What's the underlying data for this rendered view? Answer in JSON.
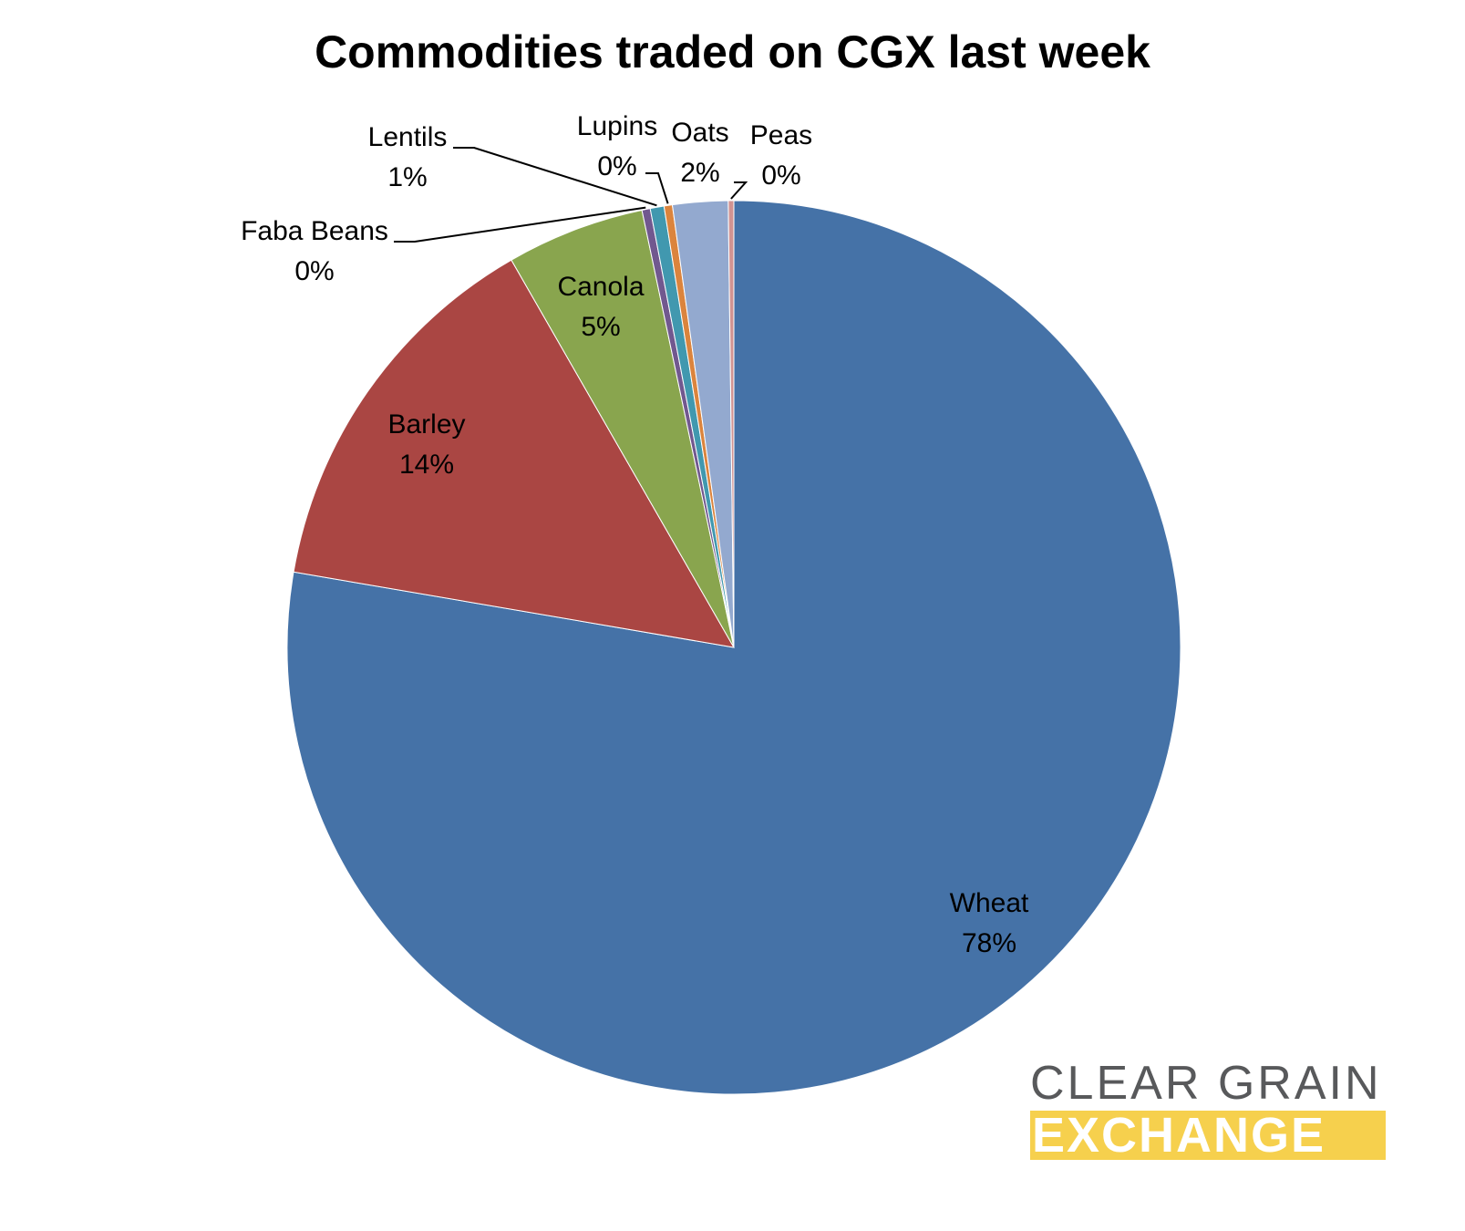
{
  "chart_data": {
    "type": "pie",
    "title": "Commodities traded on CGX last week",
    "slices": [
      {
        "label": "Wheat",
        "value": 77.7,
        "pct_label": "78%",
        "color": "#4572a7"
      },
      {
        "label": "Barley",
        "value": 14.0,
        "pct_label": "14%",
        "color": "#aa4643"
      },
      {
        "label": "Canola",
        "value": 5.0,
        "pct_label": "5%",
        "color": "#89a54e"
      },
      {
        "label": "Faba Beans",
        "value": 0.3,
        "pct_label": "0%",
        "color": "#71588f"
      },
      {
        "label": "Lentils",
        "value": 0.5,
        "pct_label": "1%",
        "color": "#4198af"
      },
      {
        "label": "Lupins",
        "value": 0.3,
        "pct_label": "0%",
        "color": "#db843d"
      },
      {
        "label": "Oats",
        "value": 2.0,
        "pct_label": "2%",
        "color": "#93a9cf"
      },
      {
        "label": "Peas",
        "value": 0.2,
        "pct_label": "0%",
        "color": "#d19392"
      }
    ],
    "data_labels": "category name and percentage",
    "legend": "none"
  },
  "logo": {
    "line1": "CLEAR GRAIN",
    "line2": "EXCHANGE",
    "line1_color": "#58595b",
    "line2_background": "#f6d04d"
  }
}
